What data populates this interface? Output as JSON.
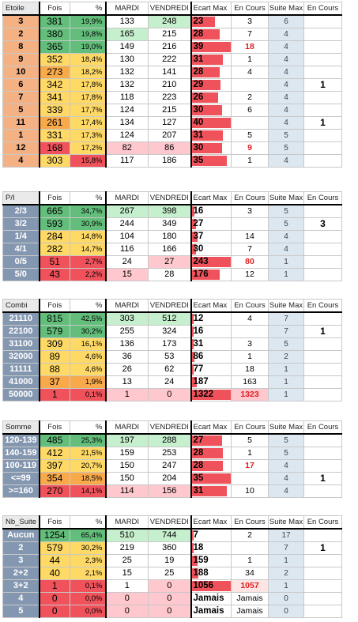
{
  "colors": {
    "green_strong": "#63be7b",
    "yellow": "#ffd966",
    "orange": "#f8a94a",
    "red": "#f0525b",
    "green_light": "#c6efce",
    "pink_light": "#ffc7ce",
    "label_orange": "#f4b183",
    "label_blue": "#8497b0",
    "label_red": "#f0525b",
    "suite_bg": "#dde7f0",
    "bar_red": "#f0525b",
    "red_text": "#e02020"
  },
  "tables": [
    {
      "name": "etoile",
      "headers": [
        "Etoile",
        "Fois",
        "%",
        "MARDI",
        "VENDREDI",
        "Ecart Max",
        "En Cours",
        "Suite Max",
        "En Cours"
      ],
      "rows": [
        [
          "3",
          "381",
          "19,9%",
          "133",
          "248",
          "23",
          "3",
          "6",
          ""
        ],
        [
          "2",
          "380",
          "19,8%",
          "165",
          "215",
          "28",
          "7",
          "4",
          ""
        ],
        [
          "8",
          "365",
          "19,0%",
          "149",
          "216",
          "39",
          "18",
          "4",
          ""
        ],
        [
          "9",
          "352",
          "18,4%",
          "130",
          "222",
          "31",
          "1",
          "4",
          ""
        ],
        [
          "10",
          "273",
          "18,2%",
          "132",
          "141",
          "28",
          "4",
          "4",
          ""
        ],
        [
          "6",
          "342",
          "17,8%",
          "132",
          "210",
          "29",
          "",
          "4",
          "1"
        ],
        [
          "7",
          "341",
          "17,8%",
          "118",
          "223",
          "26",
          "2",
          "4",
          ""
        ],
        [
          "5",
          "339",
          "17,7%",
          "124",
          "215",
          "30",
          "6",
          "4",
          ""
        ],
        [
          "11",
          "261",
          "17,4%",
          "134",
          "127",
          "40",
          "",
          "4",
          "1"
        ],
        [
          "1",
          "331",
          "17,3%",
          "124",
          "207",
          "31",
          "5",
          "5",
          ""
        ],
        [
          "12",
          "168",
          "17,2%",
          "82",
          "86",
          "30",
          "9",
          "5",
          ""
        ],
        [
          "4",
          "303",
          "15,8%",
          "117",
          "186",
          "35",
          "1",
          "4",
          ""
        ]
      ],
      "ecart_fraction": [
        0.59,
        0.72,
        1.0,
        0.79,
        0.72,
        0.74,
        0.67,
        0.77,
        1.0,
        0.79,
        0.77,
        0.9
      ]
    },
    {
      "name": "pi",
      "headers": [
        "P/I",
        "Fois",
        "%",
        "MARDI",
        "VENDREDI",
        "Ecart Max",
        "En Cours",
        "Suite Max",
        "En Cours"
      ],
      "rows": [
        [
          "2/3",
          "665",
          "34,7%",
          "267",
          "398",
          "16",
          "3",
          "5",
          ""
        ],
        [
          "3/2",
          "593",
          "30,9%",
          "244",
          "349",
          "27",
          "",
          "5",
          "3"
        ],
        [
          "1/4",
          "284",
          "14,8%",
          "104",
          "180",
          "37",
          "14",
          "4",
          ""
        ],
        [
          "4/1",
          "282",
          "14,7%",
          "116",
          "166",
          "30",
          "7",
          "4",
          ""
        ],
        [
          "0/5",
          "51",
          "2,7%",
          "24",
          "27",
          "243",
          "80",
          "1",
          ""
        ],
        [
          "5/0",
          "43",
          "2,2%",
          "15",
          "28",
          "176",
          "12",
          "1",
          ""
        ]
      ],
      "ecart_fraction": [
        0.07,
        0.11,
        0.15,
        0.12,
        1.0,
        0.72
      ]
    },
    {
      "name": "combi",
      "headers": [
        "Combi",
        "Fois",
        "%",
        "MARDI",
        "VENDREDI",
        "Ecart Max",
        "En Cours",
        "Suite Max",
        "En Cours"
      ],
      "rows": [
        [
          "21110",
          "815",
          "42,5%",
          "303",
          "512",
          "12",
          "4",
          "7",
          ""
        ],
        [
          "22100",
          "579",
          "30,2%",
          "255",
          "324",
          "16",
          "",
          "7",
          "1"
        ],
        [
          "31100",
          "309",
          "16,1%",
          "136",
          "173",
          "31",
          "3",
          "5",
          ""
        ],
        [
          "32000",
          "89",
          "4,6%",
          "36",
          "53",
          "86",
          "1",
          "2",
          ""
        ],
        [
          "11111",
          "88",
          "4,6%",
          "26",
          "62",
          "77",
          "18",
          "1",
          ""
        ],
        [
          "41000",
          "37",
          "1,9%",
          "13",
          "24",
          "187",
          "163",
          "1",
          ""
        ],
        [
          "50000",
          "1",
          "0,1%",
          "1",
          "0",
          "1322",
          "1323",
          "1",
          ""
        ]
      ],
      "ecart_fraction": [
        0.01,
        0.01,
        0.02,
        0.07,
        0.06,
        0.14,
        1.0
      ]
    },
    {
      "name": "somme",
      "headers": [
        "Somme",
        "Fois",
        "%",
        "MARDI",
        "VENDREDI",
        "Ecart Max",
        "En Cours",
        "Suite Max",
        "En Cours"
      ],
      "rows": [
        [
          "120-139",
          "485",
          "25,3%",
          "197",
          "288",
          "27",
          "5",
          "5",
          ""
        ],
        [
          "140-159",
          "412",
          "21,5%",
          "159",
          "253",
          "28",
          "1",
          "5",
          ""
        ],
        [
          "100-119",
          "397",
          "20,7%",
          "150",
          "247",
          "28",
          "17",
          "4",
          ""
        ],
        [
          "<=99",
          "354",
          "18,5%",
          "150",
          "204",
          "35",
          "",
          "4",
          "1"
        ],
        [
          ">=160",
          "270",
          "14,1%",
          "114",
          "156",
          "31",
          "10",
          "4",
          ""
        ]
      ],
      "ecart_fraction": [
        0.77,
        0.8,
        0.8,
        1.0,
        0.89
      ]
    },
    {
      "name": "nb_suite",
      "headers": [
        "Nb_Suite",
        "Fois",
        "%",
        "MARDI",
        "VENDREDI",
        "Ecart Max",
        "En Cours",
        "Suite Max",
        "En Cours"
      ],
      "rows": [
        [
          "Aucun",
          "1254",
          "65,4%",
          "510",
          "744",
          "7",
          "2",
          "17",
          ""
        ],
        [
          "2",
          "579",
          "30,2%",
          "219",
          "360",
          "18",
          "",
          "7",
          "1"
        ],
        [
          "3",
          "44",
          "2,3%",
          "25",
          "19",
          "159",
          "1",
          "1",
          ""
        ],
        [
          "2+2",
          "40",
          "2,1%",
          "15",
          "25",
          "188",
          "34",
          "2",
          ""
        ],
        [
          "3+2",
          "1",
          "0,1%",
          "1",
          "0",
          "1056",
          "1057",
          "1",
          ""
        ],
        [
          "4",
          "0",
          "0,0%",
          "0",
          "0",
          "Jamais",
          "Jamais",
          "0",
          ""
        ],
        [
          "5",
          "0",
          "0,0%",
          "0",
          "0",
          "Jamais",
          "Jamais",
          "0",
          ""
        ]
      ],
      "ecart_fraction": [
        0.01,
        0.02,
        0.15,
        0.18,
        1.0,
        0,
        0
      ]
    }
  ]
}
